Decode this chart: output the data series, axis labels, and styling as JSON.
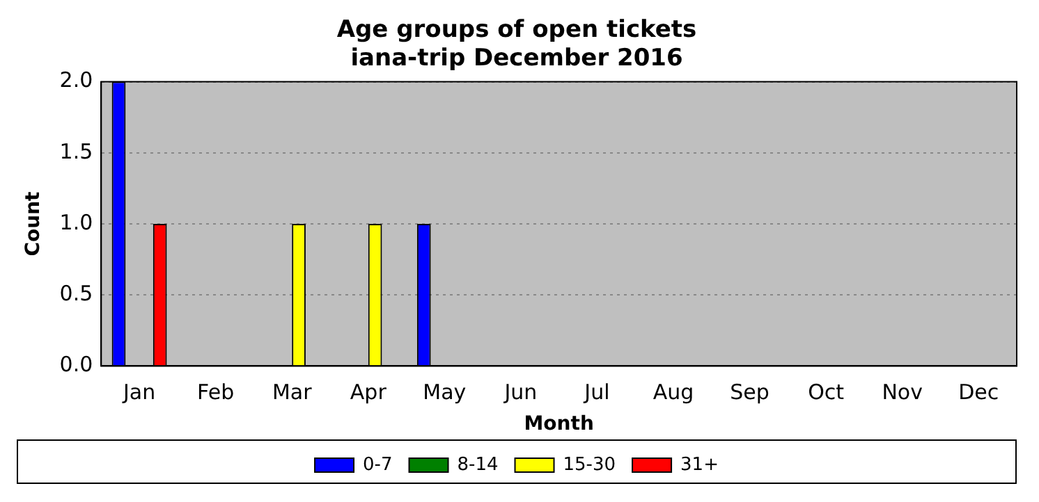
{
  "chart_data": {
    "type": "bar",
    "title": "Age groups of open tickets\niana-trip December 2016",
    "xlabel": "Month",
    "ylabel": "Count",
    "categories": [
      "Jan",
      "Feb",
      "Mar",
      "Apr",
      "May",
      "Jun",
      "Jul",
      "Aug",
      "Sep",
      "Oct",
      "Nov",
      "Dec"
    ],
    "series": [
      {
        "name": "0-7",
        "color": "#0000ff",
        "values": [
          2,
          0,
          0,
          0,
          1,
          0,
          0,
          0,
          0,
          0,
          0,
          0
        ]
      },
      {
        "name": "8-14",
        "color": "#008000",
        "values": [
          0,
          0,
          0,
          0,
          0,
          0,
          0,
          0,
          0,
          0,
          0,
          0
        ]
      },
      {
        "name": "15-30",
        "color": "#ffff00",
        "values": [
          0,
          0,
          1,
          1,
          0,
          0,
          0,
          0,
          0,
          0,
          0,
          0
        ]
      },
      {
        "name": "31+",
        "color": "#ff0000",
        "values": [
          1,
          0,
          0,
          0,
          0,
          0,
          0,
          0,
          0,
          0,
          0,
          0
        ]
      }
    ],
    "ylim": [
      0,
      2
    ],
    "yticks": [
      {
        "value": 0,
        "label": "0.0"
      },
      {
        "value": 0.5,
        "label": "0.5"
      },
      {
        "value": 1,
        "label": "1.0"
      },
      {
        "value": 1.5,
        "label": "1.5"
      },
      {
        "value": 2,
        "label": "2.0"
      }
    ],
    "grid": "y",
    "legend": "bottom"
  }
}
